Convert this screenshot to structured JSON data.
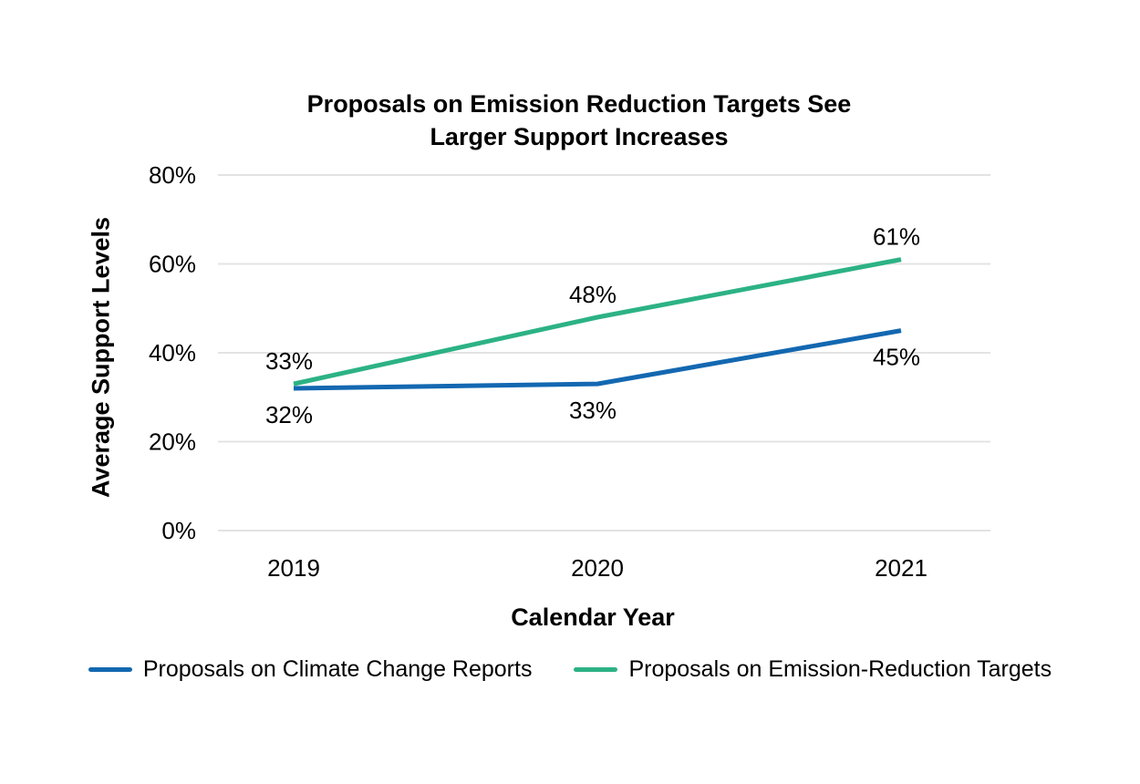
{
  "chart_data": {
    "type": "line",
    "title": "Proposals on Emission Reduction Targets See Larger Support Increases",
    "title_lines": [
      "Proposals on Emission Reduction Targets See",
      "Larger Support Increases"
    ],
    "xlabel": "Calendar Year",
    "ylabel": "Average Support Levels",
    "categories": [
      "2019",
      "2020",
      "2021"
    ],
    "y_ticks": [
      "0%",
      "20%",
      "40%",
      "60%",
      "80%"
    ],
    "ylim": [
      0,
      80
    ],
    "grid": "horizontal",
    "legend_position": "bottom",
    "series": [
      {
        "name": "Proposals on Climate Change Reports",
        "color": "#1368B1",
        "values": [
          32,
          33,
          45
        ],
        "data_labels": [
          "32%",
          "33%",
          "45%"
        ],
        "label_position": "below"
      },
      {
        "name": "Proposals on Emission-Reduction Targets",
        "color": "#2CB285",
        "values": [
          33,
          48,
          61
        ],
        "data_labels": [
          "33%",
          "48%",
          "61%"
        ],
        "label_position": "above"
      }
    ]
  },
  "colors": {
    "gridline": "#e3e3e3",
    "text": "#000000"
  }
}
